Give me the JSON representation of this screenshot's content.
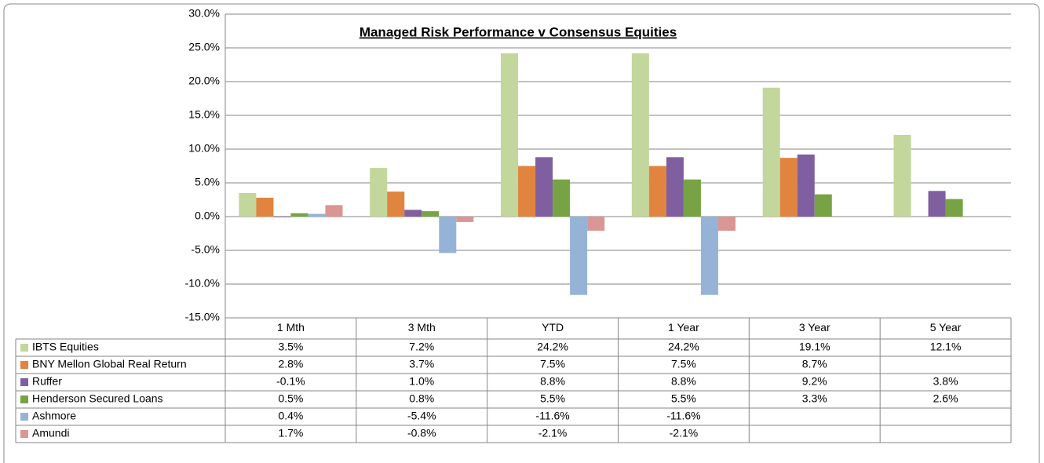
{
  "chart_data": {
    "type": "bar",
    "title": "Managed Risk Performance v Consensus Equities",
    "categories": [
      "1 Mth",
      "3 Mth",
      "YTD",
      "1 Year",
      "3 Year",
      "5 Year"
    ],
    "series": [
      {
        "name": "IBTS Equities",
        "color": "#c3d69b",
        "values": [
          3.5,
          7.2,
          24.2,
          24.2,
          19.1,
          12.1
        ],
        "value_labels": [
          "3.5%",
          "7.2%",
          "24.2%",
          "24.2%",
          "19.1%",
          "12.1%"
        ]
      },
      {
        "name": "BNY Mellon Global Real Return",
        "color": "#e0843f",
        "values": [
          2.8,
          3.7,
          7.5,
          7.5,
          8.7,
          null
        ],
        "value_labels": [
          "2.8%",
          "3.7%",
          "7.5%",
          "7.5%",
          "8.7%",
          null
        ]
      },
      {
        "name": "Ruffer",
        "color": "#7f5f9f",
        "values": [
          -0.1,
          1.0,
          8.8,
          8.8,
          9.2,
          3.8
        ],
        "value_labels": [
          "-0.1%",
          "1.0%",
          "8.8%",
          "8.8%",
          "9.2%",
          "3.8%"
        ]
      },
      {
        "name": "Henderson Secured Loans",
        "color": "#77a344",
        "values": [
          0.5,
          0.8,
          5.5,
          5.5,
          3.3,
          2.6
        ],
        "value_labels": [
          "0.5%",
          "0.8%",
          "5.5%",
          "5.5%",
          "3.3%",
          "2.6%"
        ]
      },
      {
        "name": "Ashmore",
        "color": "#95b3d7",
        "values": [
          0.4,
          -5.4,
          -11.6,
          -11.6,
          null,
          null
        ],
        "value_labels": [
          "0.4%",
          "-5.4%",
          "-11.6%",
          "-11.6%",
          null,
          null
        ]
      },
      {
        "name": "Amundi",
        "color": "#d99694",
        "values": [
          1.7,
          -0.8,
          -2.1,
          -2.1,
          null,
          null
        ],
        "value_labels": [
          "1.7%",
          "-0.8%",
          "-2.1%",
          "-2.1%",
          null,
          null
        ]
      }
    ],
    "ylim": [
      -15,
      30
    ],
    "yticks": [
      {
        "value": -15,
        "label": "-15.0%"
      },
      {
        "value": -10,
        "label": "-10.0%"
      },
      {
        "value": -5,
        "label": "-5.0%"
      },
      {
        "value": 0,
        "label": "0.0%"
      },
      {
        "value": 5,
        "label": "5.0%"
      },
      {
        "value": 10,
        "label": "10.0%"
      },
      {
        "value": 15,
        "label": "15.0%"
      },
      {
        "value": 20,
        "label": "20.0%"
      },
      {
        "value": 25,
        "label": "25.0%"
      },
      {
        "value": 30,
        "label": "30.0%"
      }
    ],
    "grid": true
  }
}
